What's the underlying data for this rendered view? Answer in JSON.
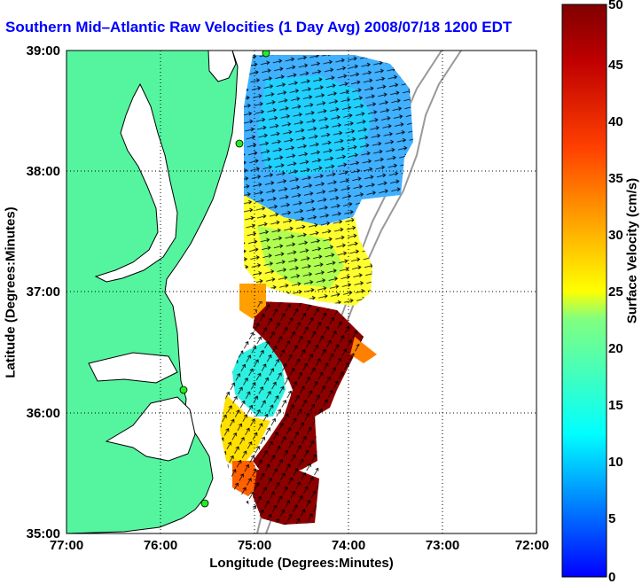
{
  "title": "Southern Mid–Atlantic Raw Velocities (1 Day Avg) 2008/07/18 1200 EDT",
  "map": {
    "xlabel": "Longitude (Degrees:Minutes)",
    "ylabel": "Latitude (Degrees:Minutes)",
    "lon_ticks": [
      "77:00",
      "76:00",
      "75:00",
      "74:00",
      "73:00",
      "72:00"
    ],
    "lat_ticks": [
      "39:00",
      "38:00",
      "37:00",
      "36:00",
      "35:00"
    ],
    "lon_range": [
      -77,
      -72
    ],
    "lat_range": [
      35,
      39
    ],
    "grid": "dotted",
    "colors": {
      "land": "#55f5a0",
      "water": "#ffffff",
      "coast": "#000000",
      "isobath": "#999999",
      "station": "#22ee22"
    }
  },
  "colorbar": {
    "label": "Surface Velocity (cm/s)",
    "ticks": [
      "50",
      "45",
      "40",
      "35",
      "30",
      "25",
      "20",
      "15",
      "10",
      "5",
      "0"
    ],
    "range": [
      0,
      50
    ],
    "colormap": "jet"
  }
}
